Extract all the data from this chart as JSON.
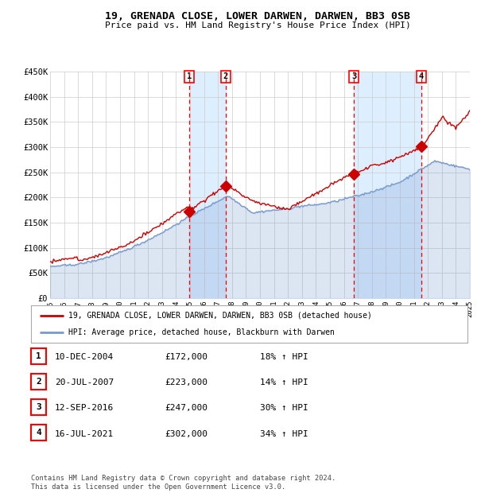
{
  "title": "19, GRENADA CLOSE, LOWER DARWEN, DARWEN, BB3 0SB",
  "subtitle": "Price paid vs. HM Land Registry's House Price Index (HPI)",
  "legend_house": "19, GRENADA CLOSE, LOWER DARWEN, DARWEN, BB3 0SB (detached house)",
  "legend_hpi": "HPI: Average price, detached house, Blackburn with Darwen",
  "footer": "Contains HM Land Registry data © Crown copyright and database right 2024.\nThis data is licensed under the Open Government Licence v3.0.",
  "house_color": "#cc0000",
  "hpi_color": "#7799cc",
  "shade_color": "#ddeeff",
  "grid_color": "#cccccc",
  "bg_color": "#ffffff",
  "ylim": [
    0,
    450000
  ],
  "yticks": [
    0,
    50000,
    100000,
    150000,
    200000,
    250000,
    300000,
    350000,
    400000,
    450000
  ],
  "ytick_labels": [
    "£0",
    "£50K",
    "£100K",
    "£150K",
    "£200K",
    "£250K",
    "£300K",
    "£350K",
    "£400K",
    "£450K"
  ],
  "sale_dates": [
    2004.94,
    2007.55,
    2016.71,
    2021.54
  ],
  "sale_prices": [
    172000,
    223000,
    247000,
    302000
  ],
  "sale_labels": [
    "1",
    "2",
    "3",
    "4"
  ],
  "table_rows": [
    [
      "1",
      "10-DEC-2004",
      "£172,000",
      "18% ↑ HPI"
    ],
    [
      "2",
      "20-JUL-2007",
      "£223,000",
      "14% ↑ HPI"
    ],
    [
      "3",
      "12-SEP-2016",
      "£247,000",
      "30% ↑ HPI"
    ],
    [
      "4",
      "16-JUL-2021",
      "£302,000",
      "34% ↑ HPI"
    ]
  ],
  "xlim": [
    1995,
    2025
  ],
  "xticks": [
    1995,
    1996,
    1997,
    1998,
    1999,
    2000,
    2001,
    2002,
    2003,
    2004,
    2005,
    2006,
    2007,
    2008,
    2009,
    2010,
    2011,
    2012,
    2013,
    2014,
    2015,
    2016,
    2017,
    2018,
    2019,
    2020,
    2021,
    2022,
    2023,
    2024,
    2025
  ]
}
